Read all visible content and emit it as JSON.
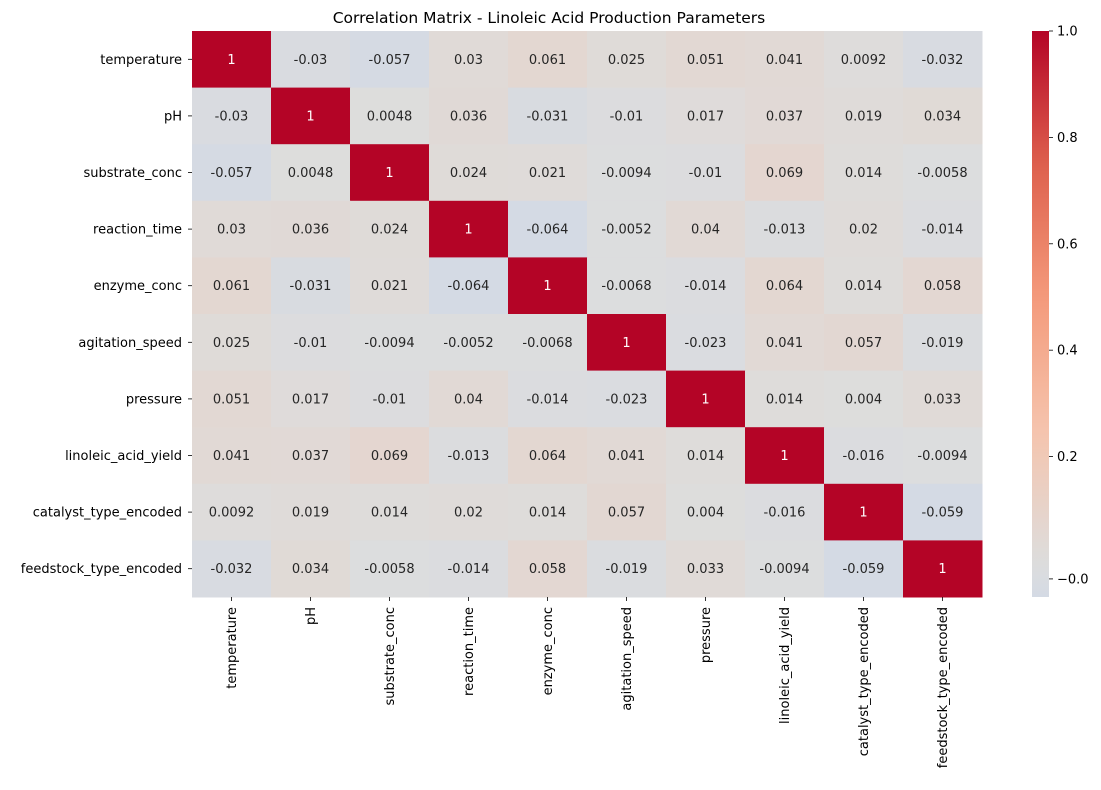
{
  "chart_data": {
    "type": "heatmap",
    "title": "Correlation Matrix - Linoleic Acid Production Parameters",
    "xlabel": "",
    "ylabel": "",
    "variables": [
      "temperature",
      "pH",
      "substrate_conc",
      "reaction_time",
      "enzyme_conc",
      "agitation_speed",
      "pressure",
      "linoleic_acid_yield",
      "catalyst_type_encoded",
      "feedstock_type_encoded"
    ],
    "values": [
      [
        "1",
        "-0.03",
        "-0.057",
        "0.03",
        "0.061",
        "0.025",
        "0.051",
        "0.041",
        "0.0092",
        "-0.032"
      ],
      [
        "-0.03",
        "1",
        "0.0048",
        "0.036",
        "-0.031",
        "-0.01",
        "0.017",
        "0.037",
        "0.019",
        "0.034"
      ],
      [
        "-0.057",
        "0.0048",
        "1",
        "0.024",
        "0.021",
        "-0.0094",
        "-0.01",
        "0.069",
        "0.014",
        "-0.0058"
      ],
      [
        "0.03",
        "0.036",
        "0.024",
        "1",
        "-0.064",
        "-0.0052",
        "0.04",
        "-0.013",
        "0.02",
        "-0.014"
      ],
      [
        "0.061",
        "-0.031",
        "0.021",
        "-0.064",
        "1",
        "-0.0068",
        "-0.014",
        "0.064",
        "0.014",
        "0.058"
      ],
      [
        "0.025",
        "-0.01",
        "-0.0094",
        "-0.0052",
        "-0.0068",
        "1",
        "-0.023",
        "0.041",
        "0.057",
        "-0.019"
      ],
      [
        "0.051",
        "0.017",
        "-0.01",
        "0.04",
        "-0.014",
        "-0.023",
        "1",
        "0.014",
        "0.004",
        "0.033"
      ],
      [
        "0.041",
        "0.037",
        "0.069",
        "-0.013",
        "0.064",
        "0.041",
        "0.014",
        "1",
        "-0.016",
        "-0.0094"
      ],
      [
        "0.0092",
        "0.019",
        "0.014",
        "0.02",
        "0.014",
        "0.057",
        "0.004",
        "-0.016",
        "1",
        "-0.059"
      ],
      [
        "-0.032",
        "0.034",
        "-0.0058",
        "-0.014",
        "0.058",
        "-0.019",
        "0.033",
        "-0.0094",
        "-0.059",
        "1"
      ]
    ],
    "colorbar": {
      "min": -0.064,
      "max": 1.0,
      "ticks": [
        "0.0",
        "0.2",
        "0.4",
        "0.6",
        "0.8",
        "1.0"
      ],
      "tick_values": [
        0,
        0.2,
        0.4,
        0.6,
        0.8,
        1.0
      ],
      "extra_tick": "−0.0",
      "extra_tick_value": -0.03,
      "colormap": "coolwarm",
      "center": 0
    },
    "colors": {
      "cold": "#3b4cc0",
      "neutral": "#dddddd",
      "hot": "#b40426"
    }
  }
}
